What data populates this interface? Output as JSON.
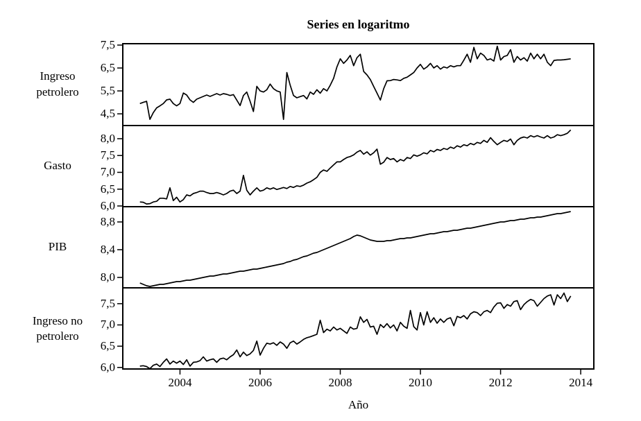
{
  "chart_data": {
    "type": "line",
    "title": "Series en logaritmo",
    "xlabel": "Año",
    "line_color": "#000000",
    "background_color": "#ffffff",
    "x_start": 2003.0,
    "x_step": 0.0833,
    "xlim": [
      2002.59,
      2014.31
    ],
    "xticks": [
      {
        "v": 2004,
        "label": "2004"
      },
      {
        "v": 2006,
        "label": "2006"
      },
      {
        "v": 2008,
        "label": "2008"
      },
      {
        "v": 2010,
        "label": "2010"
      },
      {
        "v": 2012,
        "label": "2012"
      },
      {
        "v": 2014,
        "label": "2014"
      }
    ],
    "panels": [
      {
        "name": "ingreso-petrolero",
        "label": "Ingreso\npetrolero",
        "ylim": [
          4.05,
          7.53
        ],
        "yticks": [
          {
            "v": 4.5,
            "label": "4,5"
          },
          {
            "v": 5.5,
            "label": "5,5"
          },
          {
            "v": 6.5,
            "label": "6,5"
          },
          {
            "v": 7.5,
            "label": "7,5"
          }
        ],
        "values": [
          4.95,
          5.0,
          5.05,
          4.26,
          4.55,
          4.76,
          4.85,
          4.95,
          5.11,
          5.14,
          4.95,
          4.85,
          4.95,
          5.41,
          5.32,
          5.11,
          5.0,
          5.14,
          5.2,
          5.26,
          5.32,
          5.26,
          5.32,
          5.38,
          5.32,
          5.38,
          5.35,
          5.3,
          5.34,
          5.1,
          4.86,
          5.3,
          5.45,
          5.05,
          4.6,
          5.7,
          5.5,
          5.45,
          5.55,
          5.8,
          5.6,
          5.5,
          5.45,
          4.26,
          6.3,
          5.75,
          5.3,
          5.2,
          5.25,
          5.3,
          5.15,
          5.45,
          5.35,
          5.55,
          5.4,
          5.6,
          5.5,
          5.75,
          6.05,
          6.55,
          6.9,
          6.7,
          6.85,
          7.05,
          6.6,
          6.95,
          7.1,
          6.35,
          6.2,
          6.0,
          5.7,
          5.4,
          5.1,
          5.6,
          5.94,
          5.95,
          6.0,
          5.98,
          5.95,
          6.05,
          6.1,
          6.2,
          6.3,
          6.5,
          6.66,
          6.45,
          6.55,
          6.7,
          6.5,
          6.6,
          6.45,
          6.55,
          6.5,
          6.6,
          6.55,
          6.6,
          6.6,
          6.84,
          7.1,
          6.75,
          7.4,
          6.9,
          7.15,
          7.05,
          6.85,
          6.9,
          6.8,
          7.45,
          6.85,
          7.0,
          7.05,
          7.3,
          6.75,
          7.0,
          6.85,
          6.95,
          6.8,
          7.15,
          6.9,
          7.1,
          6.9,
          7.1,
          6.75,
          6.6,
          6.83,
          6.85,
          6.85,
          6.86,
          6.88,
          6.9
        ]
      },
      {
        "name": "gasto",
        "label": "Gasto",
        "ylim": [
          6.02,
          8.35
        ],
        "yticks": [
          {
            "v": 6.0,
            "label": "6,0"
          },
          {
            "v": 6.5,
            "label": "6,5"
          },
          {
            "v": 7.0,
            "label": "7,0"
          },
          {
            "v": 7.5,
            "label": "7,5"
          },
          {
            "v": 8.0,
            "label": "8,0"
          }
        ],
        "values": [
          6.12,
          6.11,
          6.06,
          6.07,
          6.12,
          6.14,
          6.23,
          6.23,
          6.21,
          6.54,
          6.16,
          6.26,
          6.12,
          6.19,
          6.33,
          6.3,
          6.37,
          6.4,
          6.44,
          6.44,
          6.4,
          6.37,
          6.37,
          6.4,
          6.37,
          6.33,
          6.37,
          6.44,
          6.47,
          6.37,
          6.44,
          6.91,
          6.47,
          6.33,
          6.44,
          6.54,
          6.44,
          6.47,
          6.54,
          6.5,
          6.54,
          6.49,
          6.52,
          6.55,
          6.52,
          6.58,
          6.55,
          6.6,
          6.58,
          6.62,
          6.68,
          6.72,
          6.78,
          6.85,
          7.0,
          7.07,
          7.03,
          7.13,
          7.22,
          7.31,
          7.31,
          7.38,
          7.44,
          7.47,
          7.52,
          7.6,
          7.65,
          7.54,
          7.61,
          7.51,
          7.58,
          7.69,
          7.24,
          7.3,
          7.44,
          7.38,
          7.41,
          7.31,
          7.38,
          7.34,
          7.44,
          7.41,
          7.52,
          7.48,
          7.52,
          7.58,
          7.55,
          7.65,
          7.61,
          7.68,
          7.65,
          7.71,
          7.68,
          7.75,
          7.71,
          7.79,
          7.75,
          7.82,
          7.79,
          7.86,
          7.82,
          7.89,
          7.86,
          7.95,
          7.89,
          8.03,
          7.92,
          7.82,
          7.89,
          7.95,
          7.92,
          7.99,
          7.82,
          7.95,
          8.02,
          8.05,
          8.02,
          8.09,
          8.05,
          8.09,
          8.05,
          8.02,
          8.09,
          8.02,
          8.05,
          8.12,
          8.09,
          8.12,
          8.16,
          8.26
        ]
      },
      {
        "name": "pib",
        "label": "PIB",
        "ylim": [
          7.87,
          9.0
        ],
        "yticks": [
          {
            "v": 8.0,
            "label": "8,0"
          },
          {
            "v": 8.4,
            "label": "8,4"
          },
          {
            "v": 8.8,
            "label": "8,8"
          }
        ],
        "values": [
          7.92,
          7.9,
          7.88,
          7.87,
          7.88,
          7.89,
          7.9,
          7.9,
          7.91,
          7.92,
          7.93,
          7.94,
          7.94,
          7.95,
          7.96,
          7.96,
          7.97,
          7.98,
          7.99,
          8.0,
          8.01,
          8.02,
          8.02,
          8.03,
          8.04,
          8.05,
          8.05,
          8.06,
          8.07,
          8.08,
          8.09,
          8.09,
          8.1,
          8.11,
          8.12,
          8.12,
          8.13,
          8.14,
          8.15,
          8.16,
          8.17,
          8.18,
          8.19,
          8.2,
          8.22,
          8.23,
          8.25,
          8.26,
          8.28,
          8.3,
          8.31,
          8.33,
          8.35,
          8.36,
          8.38,
          8.4,
          8.42,
          8.44,
          8.46,
          8.48,
          8.5,
          8.52,
          8.54,
          8.56,
          8.59,
          8.61,
          8.6,
          8.58,
          8.56,
          8.54,
          8.53,
          8.52,
          8.52,
          8.52,
          8.53,
          8.53,
          8.54,
          8.55,
          8.56,
          8.56,
          8.57,
          8.57,
          8.58,
          8.59,
          8.6,
          8.61,
          8.62,
          8.63,
          8.63,
          8.64,
          8.65,
          8.66,
          8.66,
          8.67,
          8.68,
          8.68,
          8.69,
          8.7,
          8.71,
          8.71,
          8.72,
          8.73,
          8.74,
          8.75,
          8.76,
          8.77,
          8.78,
          8.79,
          8.8,
          8.8,
          8.81,
          8.82,
          8.82,
          8.83,
          8.84,
          8.84,
          8.85,
          8.86,
          8.86,
          8.87,
          8.87,
          8.88,
          8.89,
          8.9,
          8.91,
          8.92,
          8.92,
          8.93,
          8.94,
          8.95
        ]
      },
      {
        "name": "ingreso-no-petrolero",
        "label": "Ingreso no\npetrolero",
        "ylim": [
          5.98,
          7.84
        ],
        "yticks": [
          {
            "v": 6.0,
            "label": "6,0"
          },
          {
            "v": 6.5,
            "label": "6,5"
          },
          {
            "v": 7.0,
            "label": "7,0"
          },
          {
            "v": 7.5,
            "label": "7,5"
          }
        ],
        "values": [
          6.03,
          6.04,
          6.02,
          5.97,
          6.05,
          6.08,
          6.02,
          6.12,
          6.2,
          6.08,
          6.15,
          6.1,
          6.15,
          6.07,
          6.18,
          6.03,
          6.12,
          6.13,
          6.16,
          6.25,
          6.15,
          6.18,
          6.2,
          6.12,
          6.2,
          6.22,
          6.18,
          6.25,
          6.3,
          6.41,
          6.25,
          6.36,
          6.28,
          6.32,
          6.4,
          6.62,
          6.29,
          6.45,
          6.57,
          6.55,
          6.58,
          6.52,
          6.6,
          6.55,
          6.45,
          6.58,
          6.62,
          6.55,
          6.6,
          6.66,
          6.7,
          6.72,
          6.75,
          6.78,
          7.11,
          6.82,
          6.9,
          6.86,
          6.95,
          6.88,
          6.92,
          6.86,
          6.8,
          6.95,
          6.9,
          6.92,
          7.19,
          7.06,
          7.13,
          6.95,
          6.97,
          6.78,
          7.01,
          6.94,
          7.03,
          6.93,
          7.0,
          6.86,
          7.06,
          6.97,
          6.92,
          7.34,
          6.96,
          6.88,
          7.29,
          7.0,
          7.31,
          7.06,
          7.17,
          7.04,
          7.14,
          7.06,
          7.14,
          7.17,
          6.98,
          7.2,
          7.17,
          7.22,
          7.14,
          7.26,
          7.31,
          7.29,
          7.22,
          7.31,
          7.34,
          7.29,
          7.42,
          7.51,
          7.52,
          7.39,
          7.48,
          7.44,
          7.55,
          7.57,
          7.36,
          7.48,
          7.55,
          7.6,
          7.57,
          7.44,
          7.53,
          7.62,
          7.68,
          7.71,
          7.47,
          7.71,
          7.62,
          7.75,
          7.55,
          7.68
        ]
      }
    ]
  }
}
